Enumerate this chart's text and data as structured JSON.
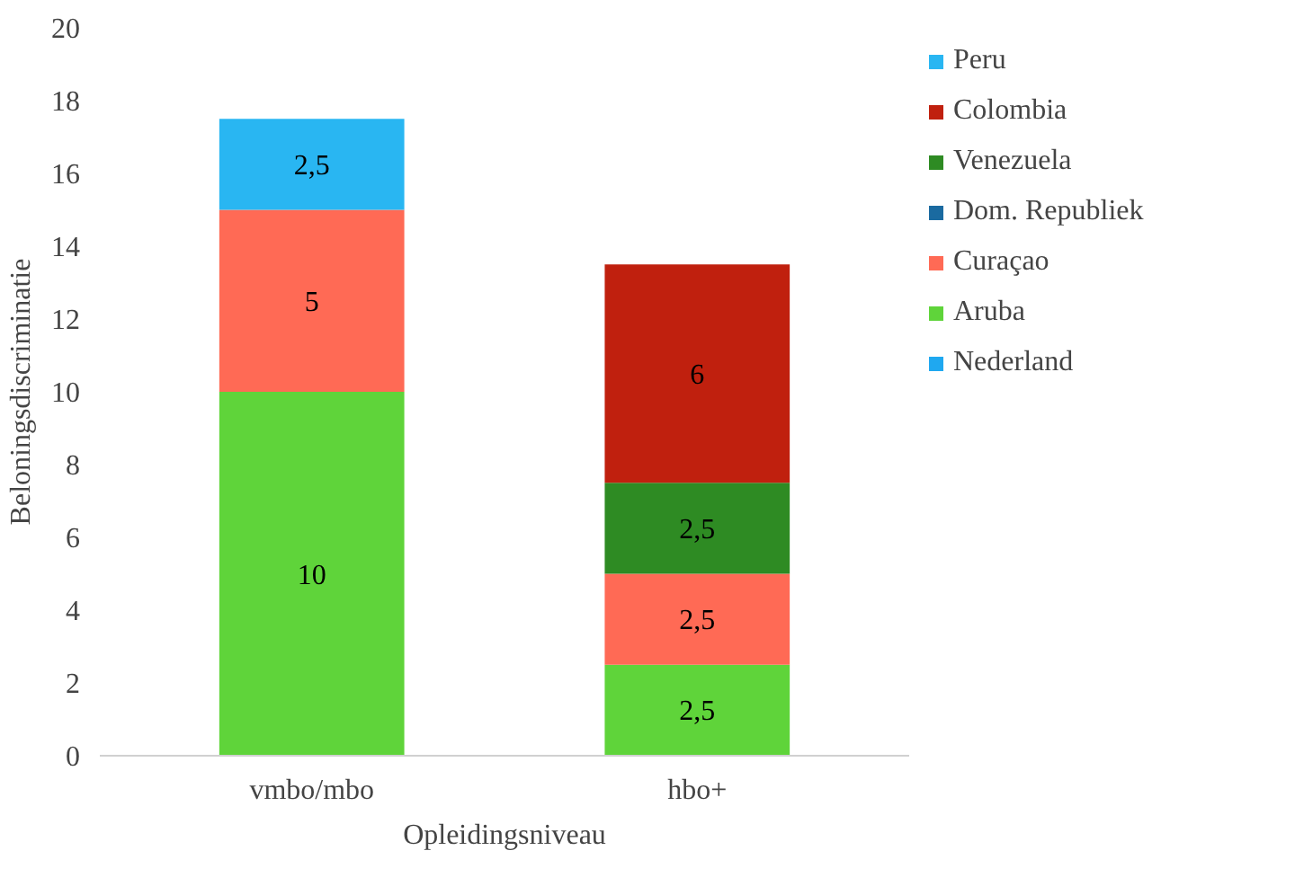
{
  "chart_data": {
    "type": "bar",
    "stacked": true,
    "xlabel": "Opleidingsniveau",
    "ylabel": "Beloningsdiscriminatie",
    "categories": [
      "vmbo/mbo",
      "hbo+"
    ],
    "ylim": [
      0,
      20
    ],
    "yticks": [
      0,
      2,
      4,
      6,
      8,
      10,
      12,
      14,
      16,
      18,
      20
    ],
    "grid": false,
    "legend": "right",
    "series": [
      {
        "name": "Nederland",
        "color": "#1fa8f0",
        "values": [
          null,
          null
        ]
      },
      {
        "name": "Aruba",
        "color": "#5fd43a",
        "values": [
          10,
          2.5
        ],
        "value_labels": [
          "10",
          "2,5"
        ]
      },
      {
        "name": "Curaçao",
        "color": "#ff6a55",
        "values": [
          5,
          2.5
        ],
        "value_labels": [
          "5",
          "2,5"
        ]
      },
      {
        "name": "Dom. Republiek",
        "color": "#1a6aa0",
        "values": [
          null,
          null
        ]
      },
      {
        "name": "Venezuela",
        "color": "#2e8b23",
        "values": [
          null,
          2.5
        ],
        "value_labels": [
          null,
          "2,5"
        ]
      },
      {
        "name": "Colombia",
        "color": "#c0200e",
        "values": [
          null,
          6
        ],
        "value_labels": [
          null,
          "6"
        ]
      },
      {
        "name": "Peru",
        "color": "#29b6f2",
        "values": [
          2.5,
          null
        ],
        "value_labels": [
          "2,5",
          null
        ]
      }
    ]
  }
}
